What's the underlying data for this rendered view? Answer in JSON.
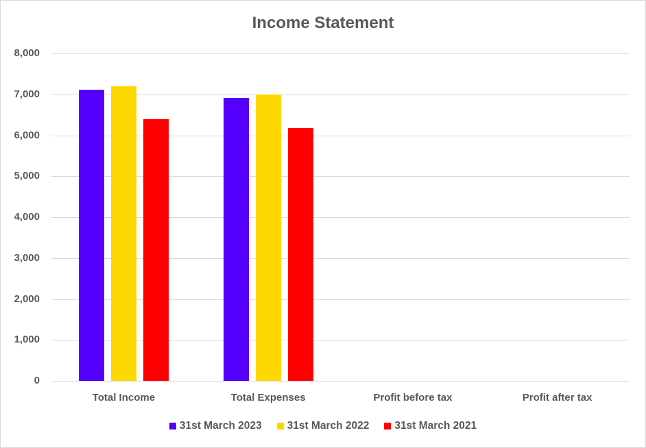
{
  "chart_data": {
    "type": "bar",
    "title": "Income Statement",
    "xlabel": "",
    "ylabel": "",
    "ylim": [
      0,
      8000
    ],
    "yticks": [
      0,
      1000,
      2000,
      3000,
      4000,
      5000,
      6000,
      7000,
      8000
    ],
    "ytick_labels": [
      "0",
      "1,000",
      "2,000",
      "3,000",
      "4,000",
      "5,000",
      "6,000",
      "7,000",
      "8,000"
    ],
    "grid": true,
    "legend_position": "bottom",
    "categories": [
      "Total Income",
      "Total Expenses",
      "Profit before tax",
      "Profit after tax"
    ],
    "series": [
      {
        "name": "31st March 2023",
        "color": "#5500ff",
        "values": [
          7110,
          6910,
          0,
          0
        ]
      },
      {
        "name": "31st March 2022",
        "color": "#ffd700",
        "values": [
          7200,
          7000,
          0,
          0
        ]
      },
      {
        "name": "31st March 2021",
        "color": "#ff0000",
        "values": [
          6390,
          6180,
          0,
          0
        ]
      }
    ]
  }
}
